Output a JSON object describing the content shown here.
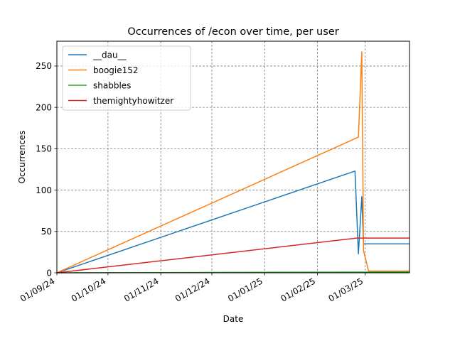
{
  "chart_data": {
    "type": "line",
    "title": "Occurrences of /econ over time, per user",
    "xlabel": "Date",
    "ylabel": "Occurrences",
    "x_axis": "date",
    "xlim": [
      "2024-09-01",
      "2025-03-27"
    ],
    "ylim": [
      0,
      280
    ],
    "x_ticks": [
      {
        "date": "2024-09-01",
        "label": "01/09/24"
      },
      {
        "date": "2024-10-01",
        "label": "01/10/24"
      },
      {
        "date": "2024-11-01",
        "label": "01/11/24"
      },
      {
        "date": "2024-12-01",
        "label": "01/12/24"
      },
      {
        "date": "2025-01-01",
        "label": "01/01/25"
      },
      {
        "date": "2025-02-01",
        "label": "01/02/25"
      },
      {
        "date": "2025-03-01",
        "label": "01/03/25"
      }
    ],
    "y_ticks": [
      0,
      50,
      100,
      150,
      200,
      250
    ],
    "grid": true,
    "legend_position": "top-left",
    "series": [
      {
        "name": "__dau__",
        "color": "#1f77b4",
        "points": [
          {
            "x": "2024-09-01",
            "y": 0
          },
          {
            "x": "2025-02-23",
            "y": 123
          },
          {
            "x": "2025-02-25",
            "y": 23
          },
          {
            "x": "2025-02-27",
            "y": 92
          },
          {
            "x": "2025-02-28",
            "y": 35
          },
          {
            "x": "2025-03-27",
            "y": 35
          }
        ]
      },
      {
        "name": "boogie152",
        "color": "#ff7f0e",
        "points": [
          {
            "x": "2024-09-01",
            "y": 0
          },
          {
            "x": "2025-02-25",
            "y": 164
          },
          {
            "x": "2025-02-27",
            "y": 267
          },
          {
            "x": "2025-02-28",
            "y": 27
          },
          {
            "x": "2025-03-03",
            "y": 2
          },
          {
            "x": "2025-03-27",
            "y": 2
          }
        ]
      },
      {
        "name": "shabbles",
        "color": "#2ca02c",
        "points": [
          {
            "x": "2024-09-01",
            "y": 0
          },
          {
            "x": "2025-03-27",
            "y": 1
          }
        ]
      },
      {
        "name": "themightyhowitzer",
        "color": "#d62728",
        "points": [
          {
            "x": "2024-09-01",
            "y": 0
          },
          {
            "x": "2025-02-24",
            "y": 42
          },
          {
            "x": "2025-03-27",
            "y": 42
          }
        ]
      }
    ]
  }
}
